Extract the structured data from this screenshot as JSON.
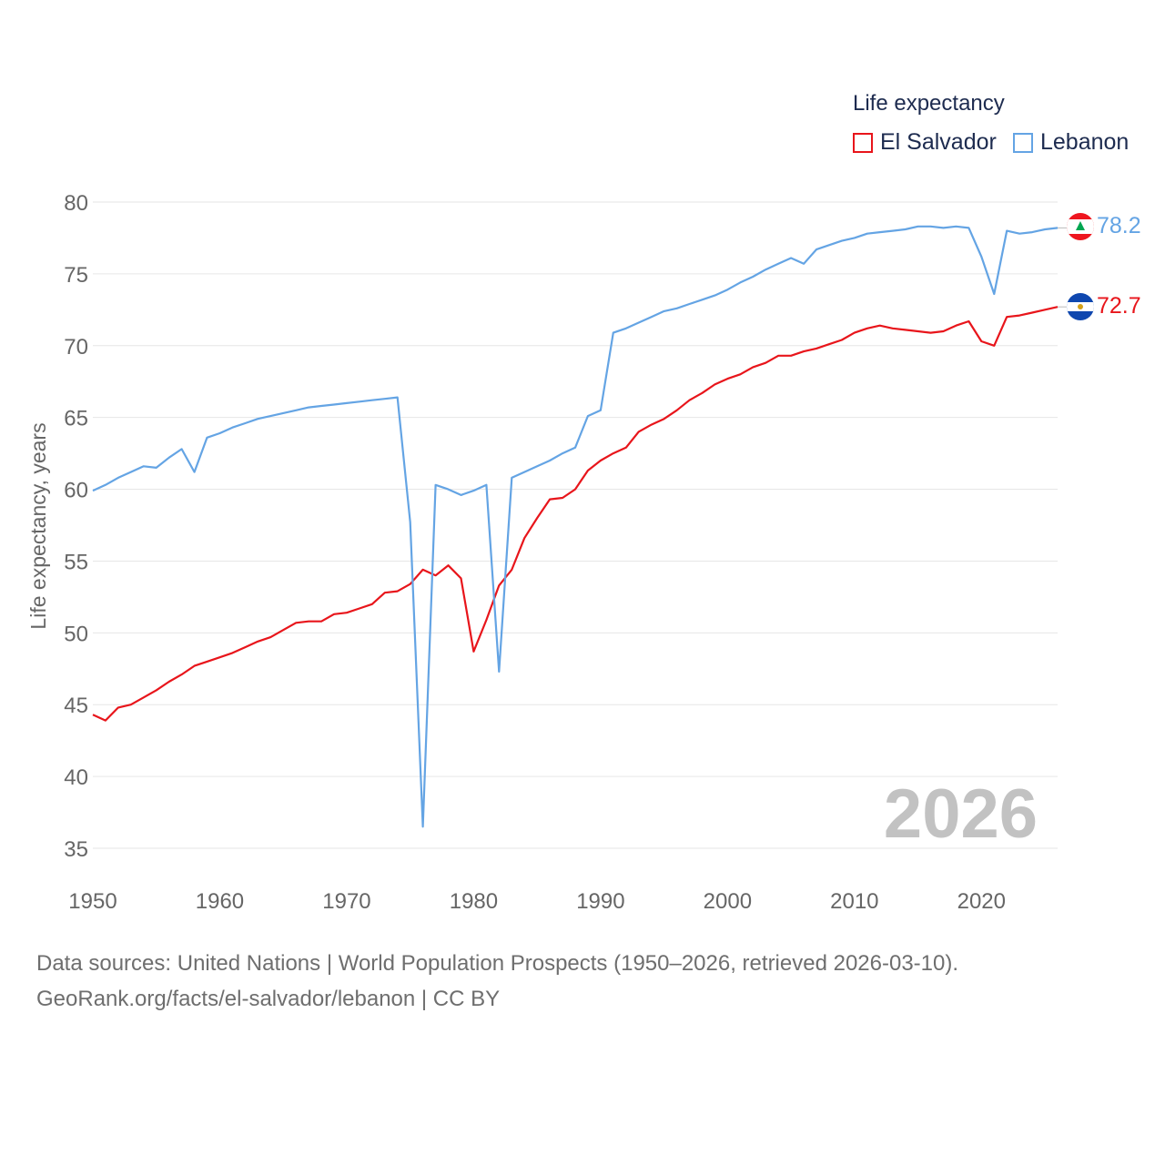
{
  "chart_data": {
    "type": "line",
    "title": "Life expectancy",
    "ylabel": "Life expectancy, years",
    "xlabel": "",
    "xlim": [
      1950,
      2026
    ],
    "ylim": [
      35,
      80
    ],
    "x_ticks": [
      1950,
      1960,
      1970,
      1980,
      1990,
      2000,
      2010,
      2020
    ],
    "y_ticks": [
      35,
      40,
      45,
      50,
      55,
      60,
      65,
      70,
      75,
      80
    ],
    "grid": true,
    "legend_position": "top-right",
    "year_label": "2026",
    "x": [
      1950,
      1951,
      1952,
      1953,
      1954,
      1955,
      1956,
      1957,
      1958,
      1959,
      1960,
      1961,
      1962,
      1963,
      1964,
      1965,
      1966,
      1967,
      1968,
      1969,
      1970,
      1971,
      1972,
      1973,
      1974,
      1975,
      1976,
      1977,
      1978,
      1979,
      1980,
      1981,
      1982,
      1983,
      1984,
      1985,
      1986,
      1987,
      1988,
      1989,
      1990,
      1991,
      1992,
      1993,
      1994,
      1995,
      1996,
      1997,
      1998,
      1999,
      2000,
      2001,
      2002,
      2003,
      2004,
      2005,
      2006,
      2007,
      2008,
      2009,
      2010,
      2011,
      2012,
      2013,
      2014,
      2015,
      2016,
      2017,
      2018,
      2019,
      2020,
      2021,
      2022,
      2023,
      2024,
      2025,
      2026
    ],
    "series": [
      {
        "name": "El Salvador",
        "color": "#e8151b",
        "end_label": "72.7",
        "values": [
          44.3,
          43.9,
          44.8,
          45.0,
          45.5,
          46.0,
          46.6,
          47.1,
          47.7,
          48.0,
          48.3,
          48.6,
          49.0,
          49.4,
          49.7,
          50.2,
          50.7,
          50.8,
          50.8,
          51.3,
          51.4,
          51.7,
          52.0,
          52.8,
          52.9,
          53.4,
          54.4,
          54.0,
          54.7,
          53.8,
          48.7,
          50.9,
          53.3,
          54.4,
          56.6,
          58.0,
          59.3,
          59.4,
          60.0,
          61.3,
          62.0,
          62.5,
          62.9,
          64.0,
          64.5,
          64.9,
          65.5,
          66.2,
          66.7,
          67.3,
          67.7,
          68.0,
          68.5,
          68.8,
          69.3,
          69.3,
          69.6,
          69.8,
          70.1,
          70.4,
          70.9,
          71.2,
          71.4,
          71.2,
          71.1,
          71.0,
          70.9,
          71.0,
          71.4,
          71.7,
          70.3,
          70.0,
          72.0,
          72.1,
          72.3,
          72.5,
          72.7
        ]
      },
      {
        "name": "Lebanon",
        "color": "#64a4e4",
        "end_label": "78.2",
        "values": [
          59.9,
          60.3,
          60.8,
          61.2,
          61.6,
          61.5,
          62.2,
          62.8,
          61.2,
          63.6,
          63.9,
          64.3,
          64.6,
          64.9,
          65.1,
          65.3,
          65.5,
          65.7,
          65.8,
          65.9,
          66.0,
          66.1,
          66.2,
          66.3,
          66.4,
          57.7,
          36.5,
          60.3,
          60.0,
          59.6,
          59.9,
          60.3,
          47.3,
          60.8,
          61.2,
          61.6,
          62.0,
          62.5,
          62.9,
          65.1,
          65.5,
          70.9,
          71.2,
          71.6,
          72.0,
          72.4,
          72.6,
          72.9,
          73.2,
          73.5,
          73.9,
          74.4,
          74.8,
          75.3,
          75.7,
          76.1,
          75.7,
          76.7,
          77.0,
          77.3,
          77.5,
          77.8,
          77.9,
          78.0,
          78.1,
          78.3,
          78.3,
          78.2,
          78.3,
          78.2,
          76.2,
          73.6,
          78.0,
          77.8,
          77.9,
          78.1,
          78.2
        ]
      }
    ]
  },
  "legend": {
    "title": "Life expectancy",
    "items": [
      "El Salvador",
      "Lebanon"
    ]
  },
  "source": {
    "line1": "Data sources: United Nations | World Population Prospects (1950–2026, retrieved 2026-03-10).",
    "line2": "GeoRank.org/facts/el-salvador/lebanon | CC BY"
  },
  "flags": {
    "lebanon": "lebanon-flag-icon",
    "el_salvador": "el-salvador-flag-icon"
  }
}
